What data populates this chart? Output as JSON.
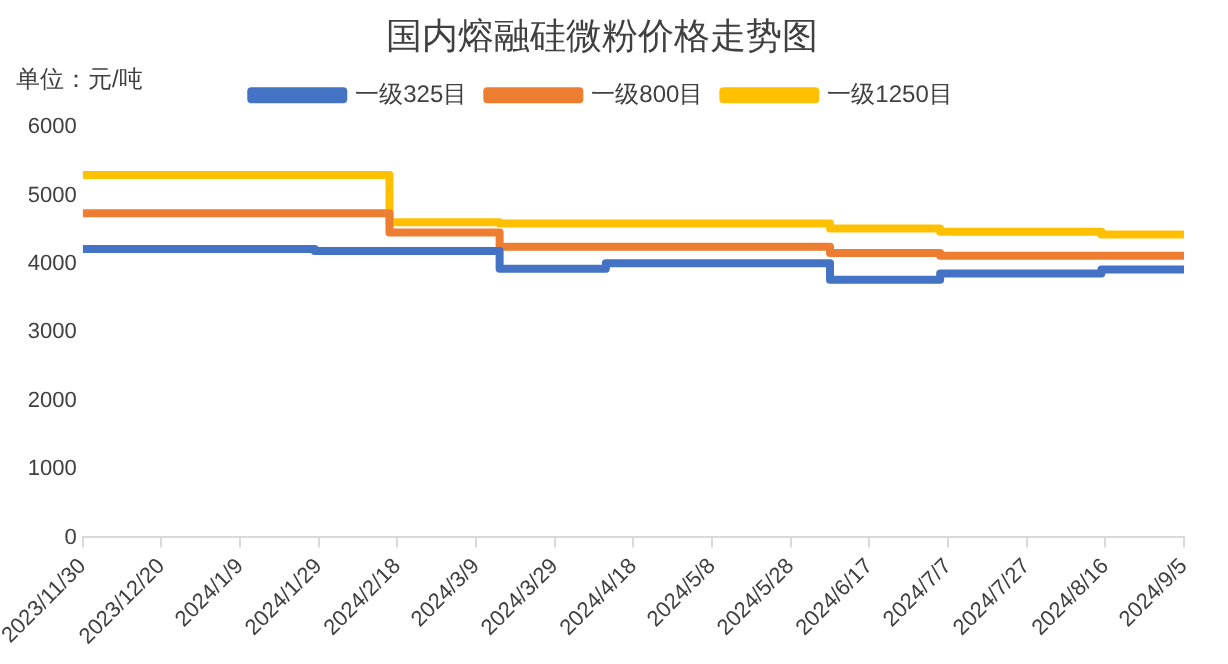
{
  "chart_data": {
    "type": "step",
    "title": "国内熔融硅微粉价格走势图",
    "annotations": [
      "单位：元/吨"
    ],
    "legend": "top",
    "grid": false,
    "marker": "none",
    "line_style": "solid",
    "xlim": [
      "2023-11-30",
      "2024-09-05"
    ],
    "xticks": [
      {
        "value": "2023-11-30",
        "label": "2023/11/30"
      },
      {
        "value": "2023-12-20",
        "label": "2023/12/20"
      },
      {
        "value": "2024-01-09",
        "label": "2024/1/9"
      },
      {
        "value": "2024-01-29",
        "label": "2024/1/29"
      },
      {
        "value": "2024-02-18",
        "label": "2024/2/18"
      },
      {
        "value": "2024-03-09",
        "label": "2024/3/9"
      },
      {
        "value": "2024-03-29",
        "label": "2024/3/29"
      },
      {
        "value": "2024-04-18",
        "label": "2024/4/18"
      },
      {
        "value": "2024-05-08",
        "label": "2024/5/8"
      },
      {
        "value": "2024-05-28",
        "label": "2024/5/28"
      },
      {
        "value": "2024-06-17",
        "label": "2024/6/17"
      },
      {
        "value": "2024-07-07",
        "label": "2024/7/7"
      },
      {
        "value": "2024-07-27",
        "label": "2024/7/27"
      },
      {
        "value": "2024-08-16",
        "label": "2024/8/16"
      },
      {
        "value": "2024-09-05",
        "label": "2024/9/5"
      }
    ],
    "ylim": [
      0,
      6000
    ],
    "yticks": [
      0,
      1000,
      2000,
      3000,
      4000,
      5000,
      6000
    ],
    "series": [
      {
        "name": "一级325目",
        "color": "#4472c4",
        "x": [
          "2023-11-30",
          "2024-01-28",
          "2024-03-15",
          "2024-04-11",
          "2024-06-07",
          "2024-07-05",
          "2024-08-15",
          "2024-09-05"
        ],
        "values": [
          4220,
          4190,
          3930,
          4010,
          3770,
          3860,
          3920,
          3920
        ]
      },
      {
        "name": "一级800目",
        "color": "#ed7d31",
        "x": [
          "2023-11-30",
          "2024-02-16",
          "2024-03-15",
          "2024-06-07",
          "2024-07-05",
          "2024-09-05"
        ],
        "values": [
          4740,
          4460,
          4250,
          4160,
          4120,
          4120
        ]
      },
      {
        "name": "一级1250目",
        "color": "#ffc000",
        "x": [
          "2023-11-30",
          "2024-02-16",
          "2024-03-15",
          "2024-06-07",
          "2024-07-05",
          "2024-08-15",
          "2024-09-05"
        ],
        "values": [
          5300,
          4610,
          4590,
          4520,
          4470,
          4430,
          4430
        ]
      }
    ]
  }
}
